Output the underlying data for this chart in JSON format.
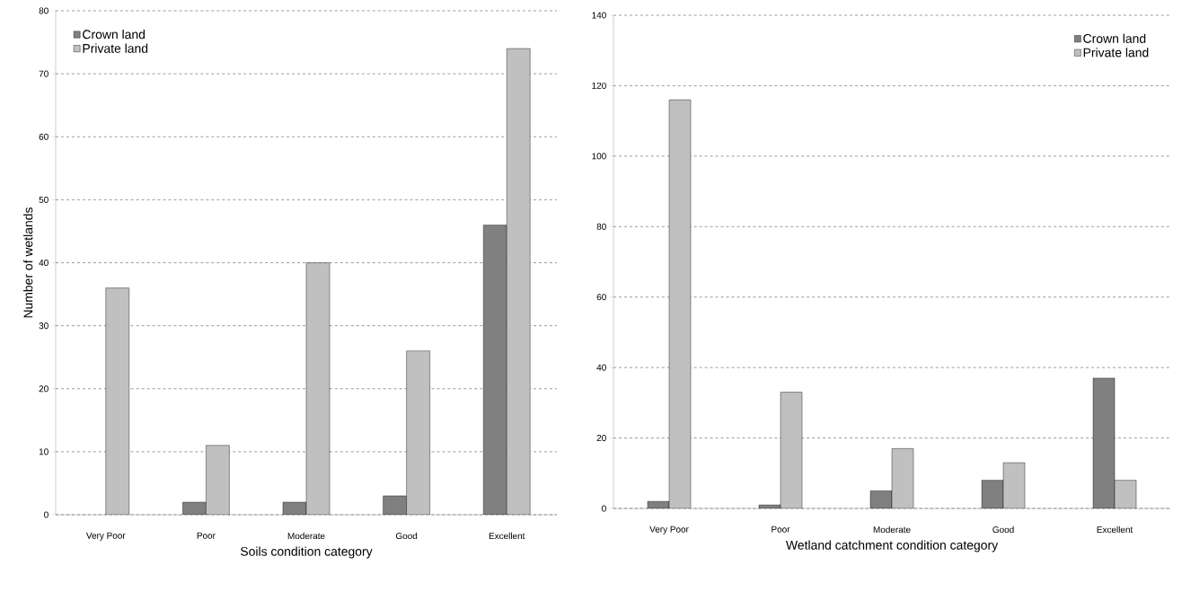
{
  "chart_data": [
    {
      "type": "bar",
      "xlabel": "Soils condition category",
      "ylabel": "Number of wetlands",
      "categories": [
        "Very Poor",
        "Poor",
        "Moderate",
        "Good",
        "Excellent"
      ],
      "series": [
        {
          "name": "Crown land",
          "color": "#808080",
          "values": [
            null,
            2,
            2,
            3,
            46
          ]
        },
        {
          "name": "Private land",
          "color": "#c0c0c0",
          "values": [
            36,
            11,
            40,
            26,
            74
          ]
        }
      ],
      "ylim": [
        0,
        80
      ],
      "yticks": [
        0,
        10,
        20,
        30,
        40,
        50,
        60,
        70,
        80
      ],
      "grid": "y",
      "legend": "top left"
    },
    {
      "type": "bar",
      "xlabel": "Wetland catchment condition category",
      "categories": [
        "Very Poor",
        "Poor",
        "Moderate",
        "Good",
        "Excellent"
      ],
      "series": [
        {
          "name": "Crown land",
          "color": "#808080",
          "values": [
            2,
            1,
            5,
            8,
            37
          ]
        },
        {
          "name": "Private land",
          "color": "#c0c0c0",
          "values": [
            116,
            33,
            17,
            13,
            8
          ]
        }
      ],
      "ylim": [
        0,
        140
      ],
      "yticks": [
        0,
        20,
        40,
        60,
        80,
        100,
        120,
        140
      ],
      "grid": "y",
      "legend": "top right"
    }
  ]
}
